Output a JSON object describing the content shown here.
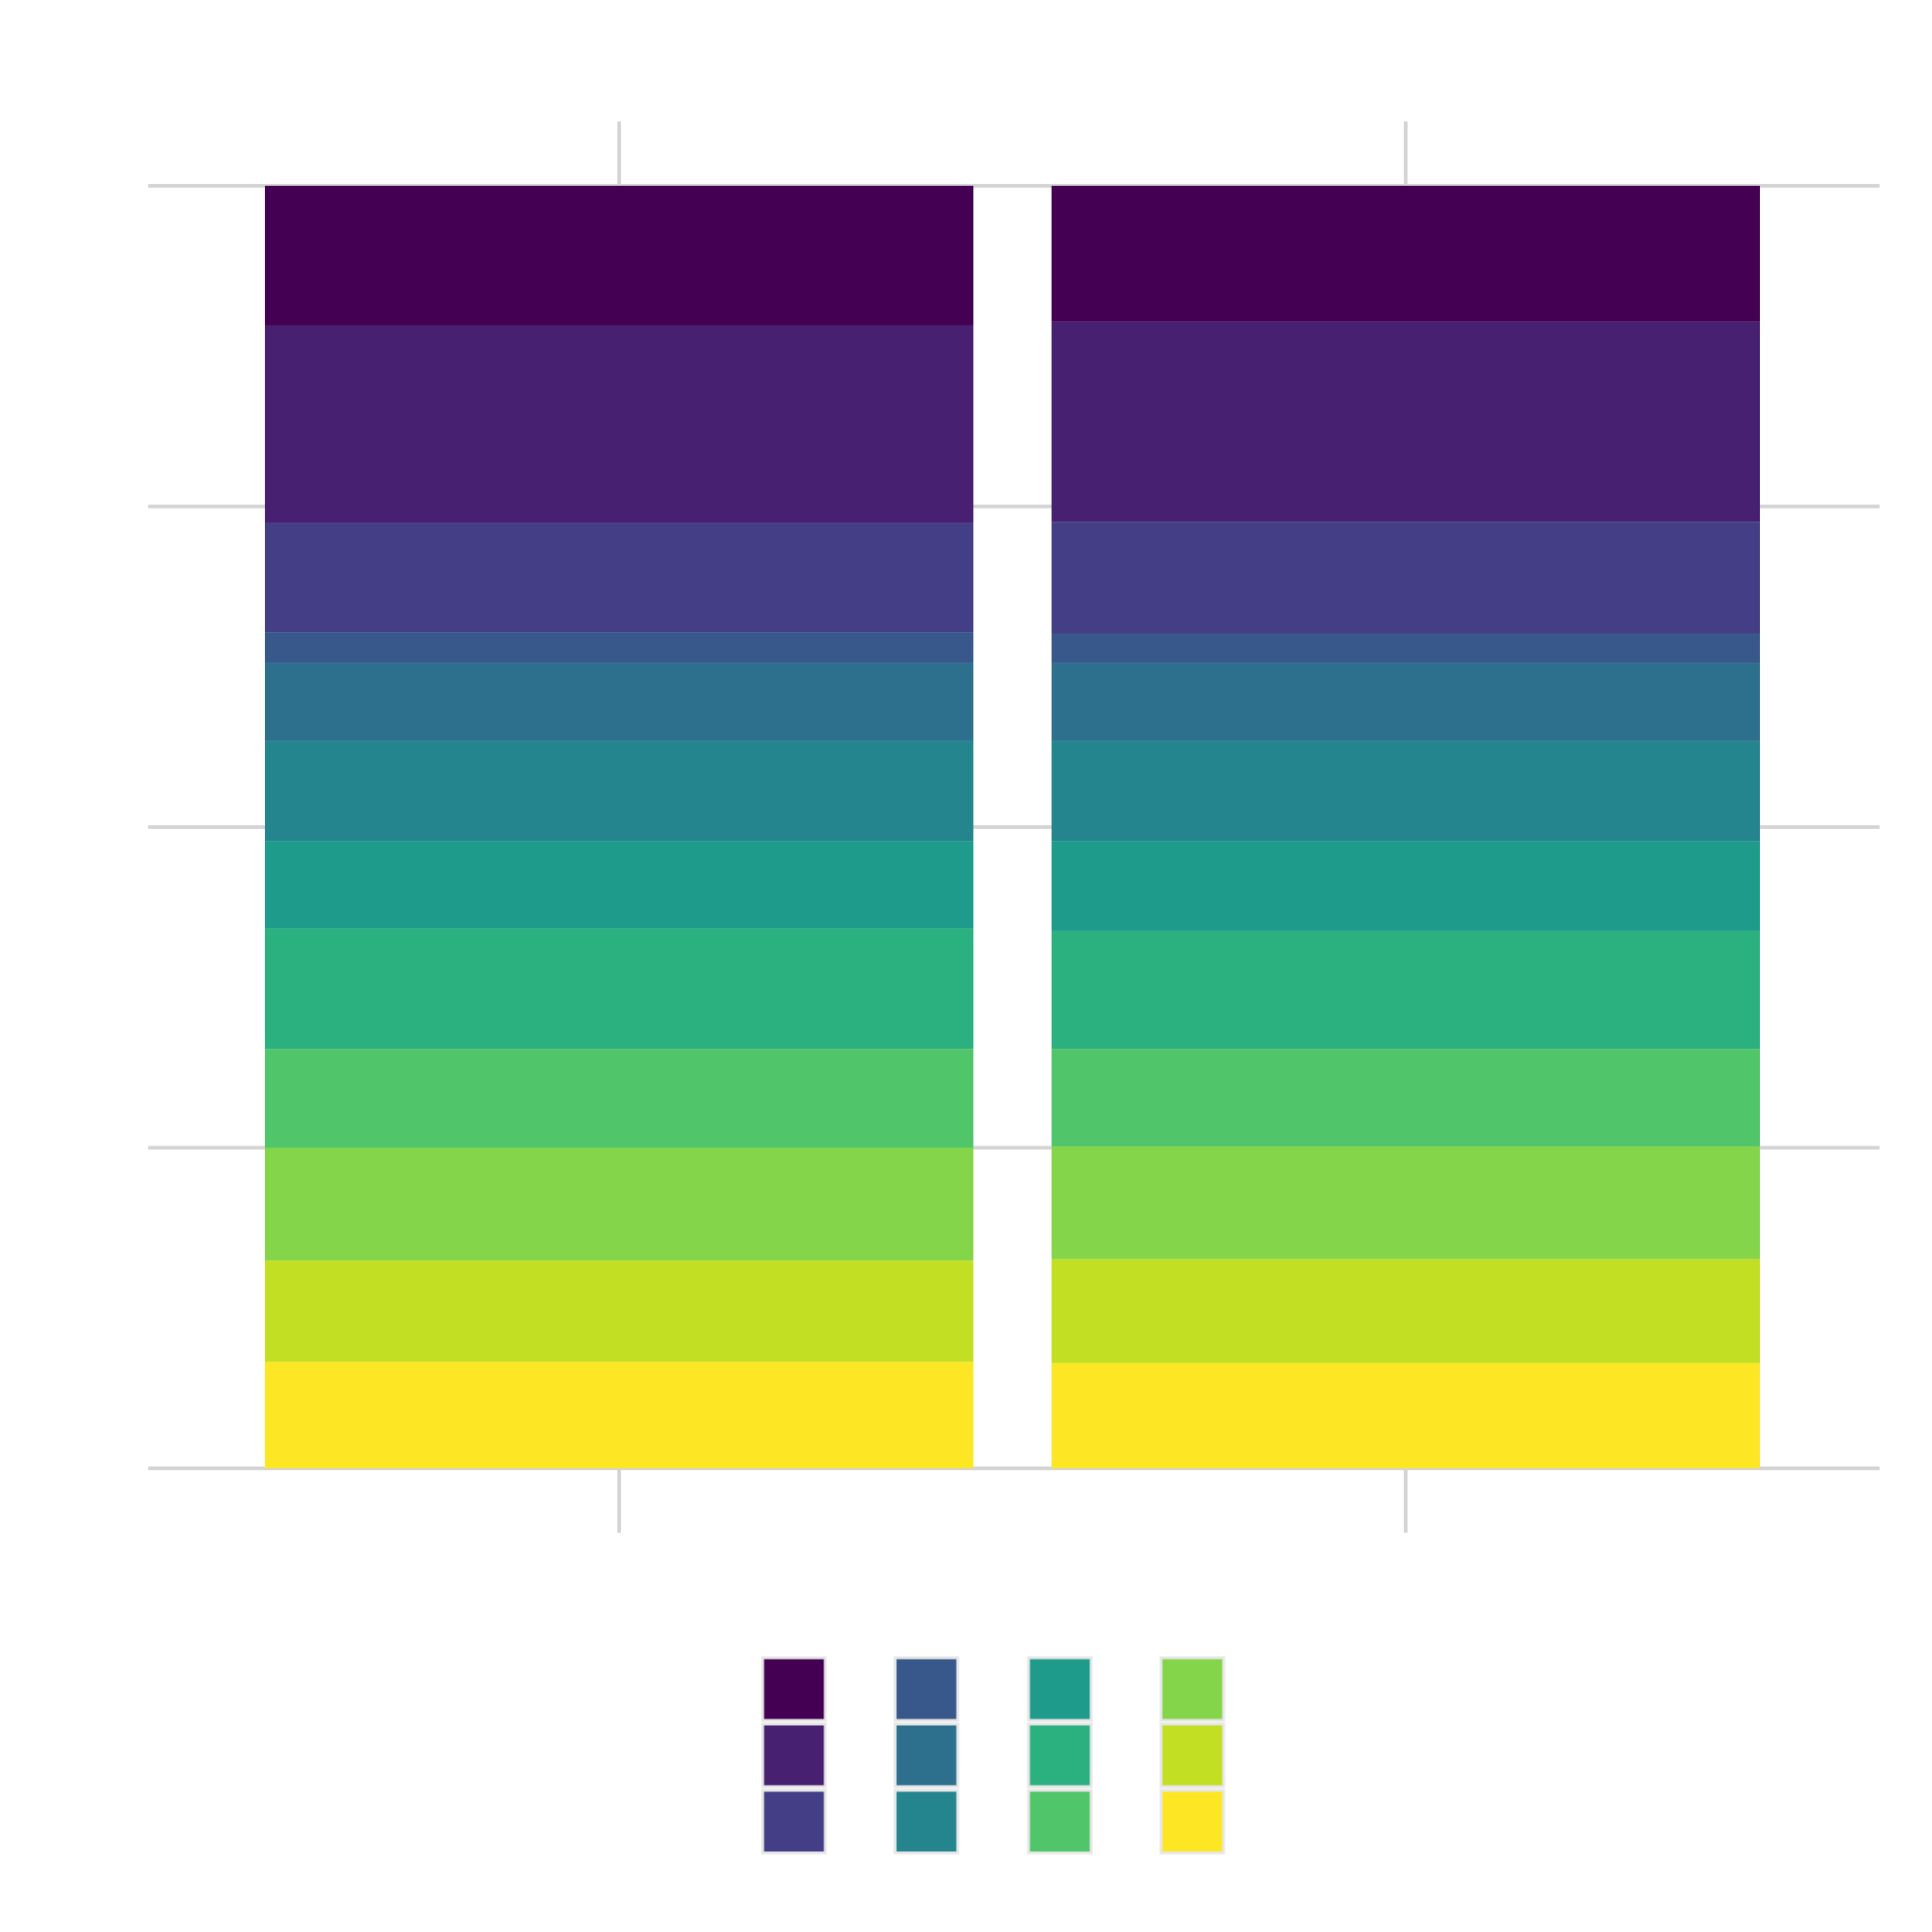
{
  "chart_data": {
    "type": "bar",
    "stacked": true,
    "normalized": true,
    "title": "",
    "xlabel": "",
    "ylabel": "",
    "categories": [
      "",
      ""
    ],
    "ylim": [
      0,
      1
    ],
    "grid": true,
    "legend_position": "bottom",
    "series": [
      {
        "color": "#440154",
        "values": [
          0.109,
          0.106
        ]
      },
      {
        "color": "#482071",
        "values": [
          0.154,
          0.156
        ]
      },
      {
        "color": "#433E85",
        "values": [
          0.085,
          0.087
        ]
      },
      {
        "color": "#38588C",
        "values": [
          0.024,
          0.023
        ]
      },
      {
        "color": "#2D708E",
        "values": [
          0.061,
          0.061
        ]
      },
      {
        "color": "#25858E",
        "values": [
          0.078,
          0.078
        ]
      },
      {
        "color": "#1E9B8A",
        "values": [
          0.068,
          0.07
        ]
      },
      {
        "color": "#2BB07F",
        "values": [
          0.094,
          0.092
        ]
      },
      {
        "color": "#51C56A",
        "values": [
          0.077,
          0.076
        ]
      },
      {
        "color": "#85D54A",
        "values": [
          0.088,
          0.088
        ]
      },
      {
        "color": "#C2DF23",
        "values": [
          0.079,
          0.081
        ]
      },
      {
        "color": "#FDE725",
        "values": [
          0.083,
          0.082
        ]
      }
    ]
  }
}
